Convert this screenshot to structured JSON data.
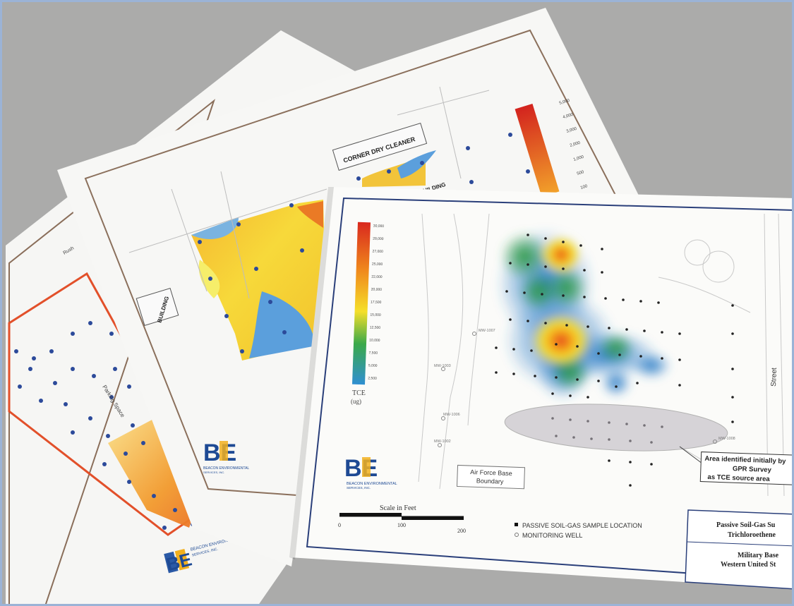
{
  "photo": {
    "background_color": "#a9a9a7",
    "frame_color": "#9bb3d6"
  },
  "back_map": {
    "label_1": "Parking Space",
    "label_2": "Rush"
  },
  "middle_map": {
    "business_label": "CORNER DRY CLEANER",
    "building_label": "BUILDING",
    "building_label_2": "BUILDING",
    "legend_values": [
      "5,000",
      "4,000",
      "3,000",
      "2,000",
      "1,000",
      "500",
      "100"
    ]
  },
  "front_map": {
    "legend_values": [
      "30,000",
      "28,000",
      "27,000",
      "25,000",
      "22,000",
      "20,000",
      "17,500",
      "15,000",
      "12,500",
      "10,000",
      "7,500",
      "5,000",
      "2,500"
    ],
    "legend_unit_1": "TCE",
    "legend_unit_2": "(ug)",
    "annotation_line_1": "Area identified initially by",
    "annotation_line_2": "GPR Survey",
    "annotation_line_3": "as TCE source area",
    "boundary_line_1": "Air Force Base",
    "boundary_line_2": "Boundary",
    "street_label": "Street",
    "scale_title": "Scale in Feet",
    "scale_ticks": [
      "0",
      "100",
      "200"
    ],
    "legend_item_1": "PASSIVE SOIL-GAS SAMPLE LOCATION",
    "legend_item_2": "MONITORING WELL",
    "title_line_1": "Passive Soil-Gas Su",
    "title_line_2": "Trichloroethene",
    "site_line_1": "Military Base",
    "site_line_2": "Western United St",
    "well_labels": [
      "MW-1007",
      "MW-1003",
      "MW-1006",
      "MW-1002",
      "MW-1008"
    ]
  },
  "logo": {
    "letters": "BE",
    "company_line_1": "BEACON ENVIRONMENTAL",
    "company_line_2": "SERVICES, INC."
  }
}
